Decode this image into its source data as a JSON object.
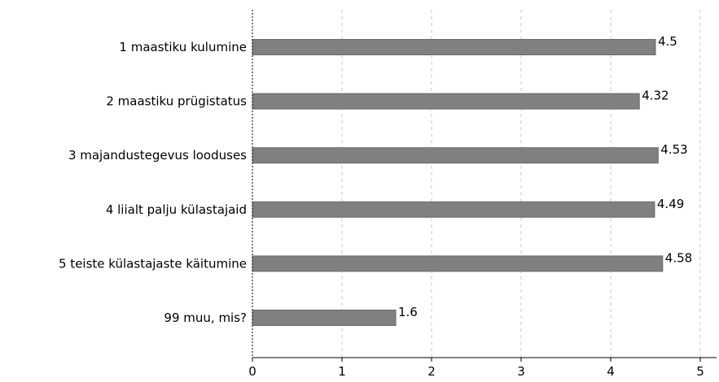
{
  "chart_data": {
    "type": "bar",
    "orientation": "horizontal",
    "categories": [
      "1 maastiku kulumine",
      "2 maastiku prügistatus",
      "3 majandustegevus looduses",
      "4 liialt palju külastajaid",
      "5 teiste külastajaste käitumine",
      "99 muu, mis?"
    ],
    "values": [
      4.5,
      4.32,
      4.53,
      4.49,
      4.58,
      1.6
    ],
    "value_labels": [
      "4.5",
      "4.32",
      "4.53",
      "4.49",
      "4.58",
      "1.6"
    ],
    "xlim": [
      0,
      5
    ],
    "x_ticks": [
      0,
      1,
      2,
      3,
      4,
      5
    ],
    "x_tick_labels": [
      "0",
      "1",
      "2",
      "3",
      "4",
      "5"
    ],
    "grid": "vertical-dashed",
    "bar_color": "#808080",
    "bar_edge_color": "#6a6a6a",
    "grid_color": "#c8c8c8",
    "axis_color": "#000000"
  }
}
